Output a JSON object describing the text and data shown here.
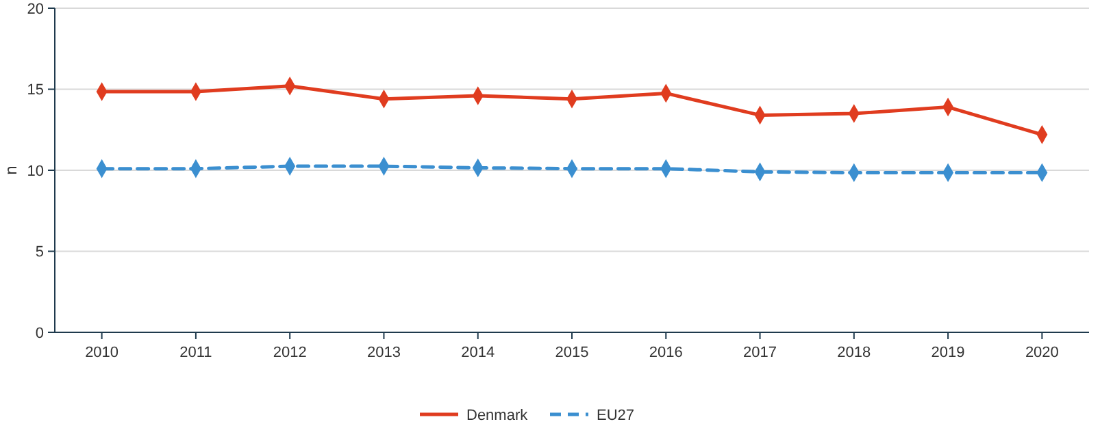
{
  "chart_data": {
    "type": "line",
    "ylabel": "n",
    "categories": [
      "2010",
      "2011",
      "2012",
      "2013",
      "2014",
      "2015",
      "2016",
      "2017",
      "2018",
      "2019",
      "2020"
    ],
    "series": [
      {
        "name": "Denmark",
        "color": "#e03c1f",
        "line_style": "solid",
        "values": [
          14.85,
          14.85,
          15.2,
          14.4,
          14.6,
          14.4,
          14.75,
          13.4,
          13.5,
          13.9,
          12.2
        ]
      },
      {
        "name": "EU27",
        "color": "#3b8fd0",
        "line_style": "dashed",
        "values": [
          10.1,
          10.1,
          10.25,
          10.25,
          10.15,
          10.1,
          10.1,
          9.9,
          9.85,
          9.85,
          9.85
        ]
      }
    ],
    "ylim": [
      0,
      20
    ],
    "yticks": [
      0,
      5,
      10,
      15,
      20
    ],
    "grid": "y",
    "legend": "bottom",
    "marker": "diamond"
  }
}
